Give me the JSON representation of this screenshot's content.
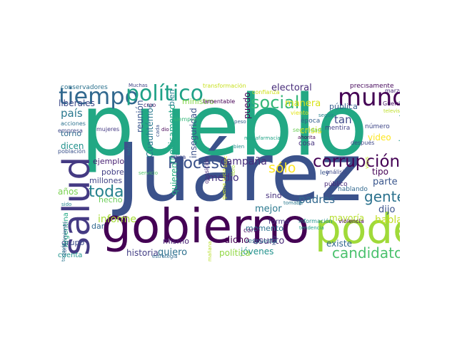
{
  "cloud": {
    "words": [
      {
        "text": "pueblo",
        "color": "#22a884"
      },
      {
        "text": "Juárez",
        "color": "#3b528b"
      },
      {
        "text": "gobierno",
        "color": "#440154"
      },
      {
        "text": "poder",
        "color": "#a0da39"
      },
      {
        "text": "salud",
        "color": "#443a83"
      },
      {
        "text": "mundo",
        "color": "#440154"
      },
      {
        "text": "tiempo",
        "color": "#31688e"
      },
      {
        "text": "político",
        "color": "#1fa187"
      },
      {
        "text": "corrupción",
        "color": "#440154"
      },
      {
        "text": "candidato",
        "color": "#4ac16d"
      },
      {
        "text": "Proceso",
        "color": "#3b528b"
      },
      {
        "text": "toda",
        "color": "#26828e"
      },
      {
        "text": "gente",
        "color": "#2c728e"
      },
      {
        "text": "social",
        "color": "#35b779"
      },
      {
        "text": "sólo",
        "color": "#fde725"
      },
      {
        "text": "campaña",
        "color": "#472d7b"
      },
      {
        "text": "medio",
        "color": "#46327e"
      },
      {
        "text": "país",
        "color": "#2a788e"
      },
      {
        "text": "informe",
        "color": "#a5db36"
      },
      {
        "text": "historia",
        "color": "#433e85"
      },
      {
        "text": "quiero",
        "color": "#2d708e"
      },
      {
        "text": "jóvenes",
        "color": "#21918c"
      },
      {
        "text": "política",
        "color": "#90d743"
      },
      {
        "text": "mejor",
        "color": "#2a788e"
      },
      {
        "text": "padres",
        "color": "#31688e"
      },
      {
        "text": "dicho",
        "color": "#440154"
      },
      {
        "text": "asunto",
        "color": "#482878"
      },
      {
        "text": "tan",
        "color": "#3e4989"
      },
      {
        "text": "tipo",
        "color": "#440154"
      },
      {
        "text": "parte",
        "color": "#39558c"
      },
      {
        "text": "dijo",
        "color": "#3b528b"
      },
      {
        "text": "hablar",
        "color": "#c2df23"
      },
      {
        "text": "mayoría",
        "color": "#b5de2b"
      },
      {
        "text": "existe",
        "color": "#31688e"
      },
      {
        "text": "electoral",
        "color": "#472c7a"
      },
      {
        "text": "pública",
        "color": "#355f8d"
      },
      {
        "text": "manera",
        "color": "#d8e219"
      },
      {
        "text": "crisis",
        "color": "#dde318"
      },
      {
        "text": "video",
        "color": "#fde725"
      },
      {
        "text": "importante",
        "color": "#1f988b"
      },
      {
        "text": "puedo",
        "color": "#440154"
      },
      {
        "text": "inseguridad",
        "color": "#3b528b"
      },
      {
        "text": "reunión",
        "color": "#39558c"
      },
      {
        "text": "Cuauhtémoc",
        "color": "#2a788e"
      },
      {
        "text": "medicamento",
        "color": "#21a585"
      },
      {
        "text": "quieren",
        "color": "#27ad81"
      },
      {
        "text": "mismo",
        "color": "#482475"
      },
      {
        "text": "ministro",
        "color": "#86d549"
      },
      {
        "text": "bien",
        "color": "#26828e"
      },
      {
        "text": "liberales",
        "color": "#3e4a89"
      },
      {
        "text": "conservadores",
        "color": "#2c728e"
      },
      {
        "text": "torno",
        "color": "#2f6c8e"
      },
      {
        "text": "dicen",
        "color": "#21918c"
      },
      {
        "text": "ejemplo",
        "color": "#482173"
      },
      {
        "text": "millones",
        "color": "#414487"
      },
      {
        "text": "pobre",
        "color": "#424086"
      },
      {
        "text": "años",
        "color": "#7ad151"
      },
      {
        "text": "hecho",
        "color": "#6ccd5a"
      },
      {
        "text": "grupo",
        "color": "#3d4d8a"
      },
      {
        "text": "dar",
        "color": "#31688e"
      },
      {
        "text": "cuenta",
        "color": "#1f948c"
      },
      {
        "text": "Argentina",
        "color": "#22a884"
      },
      {
        "text": "sino",
        "color": "#46307e"
      },
      {
        "text": "momento",
        "color": "#2c728e"
      },
      {
        "text": "respuesta",
        "color": "#2e6f8e"
      },
      {
        "text": "corte",
        "color": "#471063"
      },
      {
        "text": "forma",
        "color": "#453781"
      },
      {
        "text": "hablando",
        "color": "#31688e"
      },
      {
        "text": "público",
        "color": "#482878"
      },
      {
        "text": "ley",
        "color": "#3a548c"
      },
      {
        "text": "análisis",
        "color": "#3e4989"
      },
      {
        "text": "mentira",
        "color": "#424086"
      },
      {
        "text": "cosa",
        "color": "#46337f"
      },
      {
        "text": "época",
        "color": "#34618d"
      },
      {
        "text": "número",
        "color": "#3f4788"
      },
      {
        "text": "después",
        "color": "#3f4889"
      },
      {
        "text": "Guerrero",
        "color": "#471365"
      },
      {
        "text": "confianza",
        "color": "#d0e11c"
      },
      {
        "text": "lamentable",
        "color": "#440154"
      },
      {
        "text": "transformación",
        "color": "#c8e020"
      },
      {
        "text": "precisamente",
        "color": "#46085c"
      },
      {
        "text": "marzo",
        "color": "#482677"
      },
      {
        "text": "Muchas",
        "color": "#414487"
      },
      {
        "text": "empresa",
        "color": "#3e4989"
      },
      {
        "text": "acciones",
        "color": "#2c728e"
      },
      {
        "text": "mujeres",
        "color": "#443983"
      },
      {
        "text": "población",
        "color": "#3b528b"
      },
      {
        "text": "conocimiento",
        "color": "#39568c"
      },
      {
        "text": "todavía",
        "color": "#2a768e"
      },
      {
        "text": "sido",
        "color": "#26828e"
      },
      {
        "text": "habla",
        "color": "#2e6e8e"
      },
      {
        "text": "estrategia",
        "color": "#2f6b8e"
      },
      {
        "text": "servicio",
        "color": "#52c569"
      },
      {
        "text": "diga",
        "color": "#3f4788"
      },
      {
        "text": "oposición",
        "color": "#482979"
      },
      {
        "text": "mañana",
        "color": "#b8de29"
      },
      {
        "text": "libro",
        "color": "#a2da37"
      },
      {
        "text": "guerra sucia",
        "color": "#cae11f"
      },
      {
        "text": "megafarmacia",
        "color": "#20a386"
      },
      {
        "text": "creo",
        "color": "#481c6e"
      },
      {
        "text": "dio",
        "color": "#440154"
      },
      {
        "text": "cada",
        "color": "#3b528b"
      },
      {
        "text": "siempre",
        "color": "#35b779"
      },
      {
        "text": "peso",
        "color": "#33628d"
      },
      {
        "text": "viento",
        "color": "#e2e418"
      },
      {
        "text": "televisa",
        "color": "#bddf26"
      },
      {
        "text": "seguir",
        "color": "#25838e"
      },
      {
        "text": "ahorita",
        "color": "#440154"
      },
      {
        "text": "seguridad",
        "color": "#6ece58"
      },
      {
        "text": "información",
        "color": "#20928c"
      },
      {
        "text": "violencia",
        "color": "#440154"
      },
      {
        "text": "tendencia",
        "color": "#1fa088"
      },
      {
        "text": "Hoy",
        "color": "#3b528b"
      },
      {
        "text": "bien",
        "color": "#21918c"
      },
      {
        "text": "busc",
        "color": "#fde725"
      },
      {
        "text": "tomaba",
        "color": "#2a788e"
      },
      {
        "text": "virus",
        "color": "#c0df25"
      }
    ]
  }
}
